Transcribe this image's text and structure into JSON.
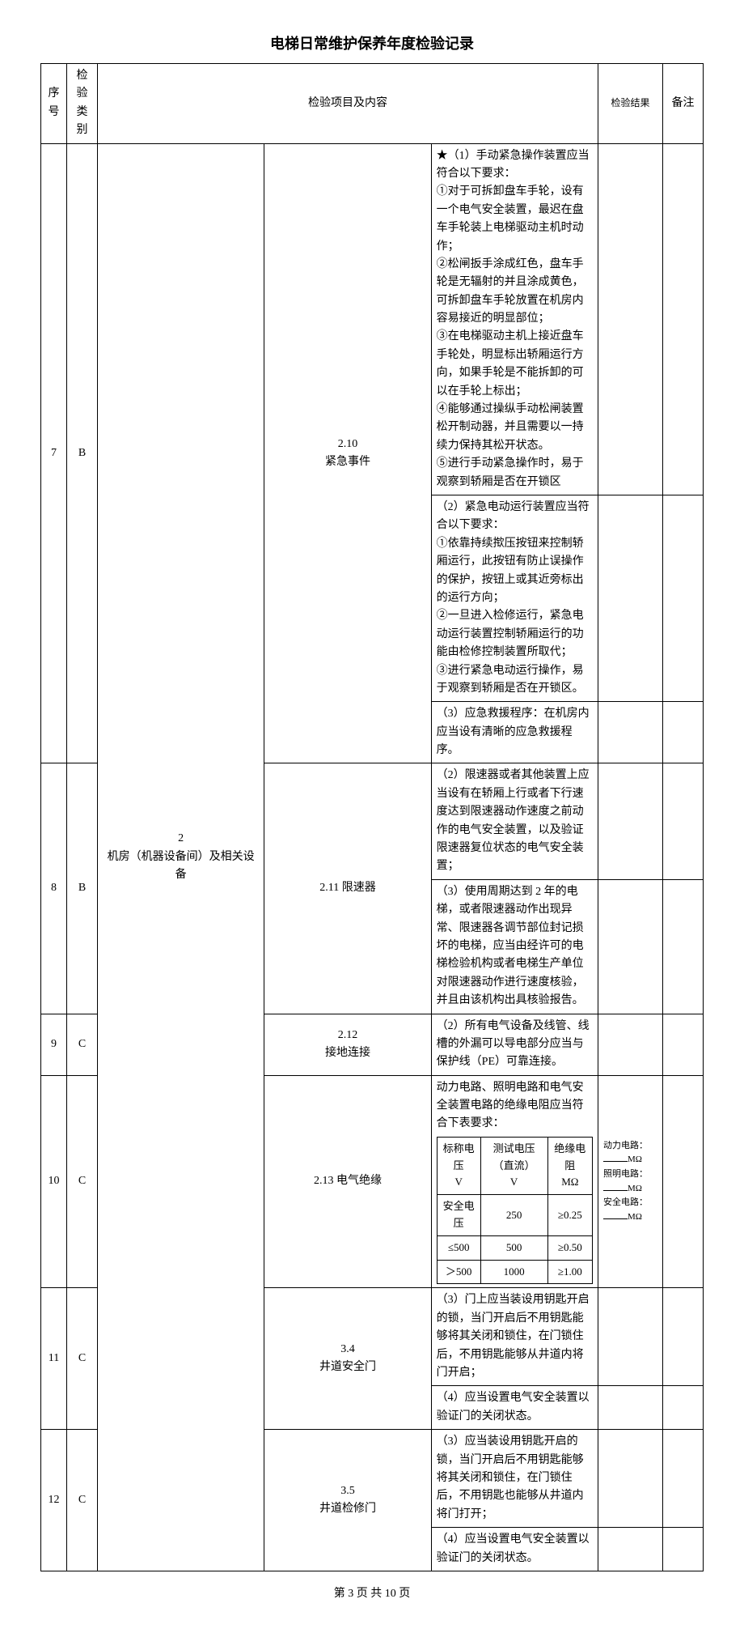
{
  "title": "电梯日常维护保养年度检验记录",
  "headers": {
    "seq": "序号",
    "category": "检验类别",
    "project": "检验项目及内容",
    "result": "检验结果",
    "note": "备注"
  },
  "section_group": "2\n机房（机器设备间）及相关设备",
  "rows": [
    {
      "seq": "7",
      "cat": "B",
      "subsection": "2.10\n紧急事件",
      "contents": [
        "★（1）手动紧急操作装置应当符合以下要求：\n①对于可拆卸盘车手轮，设有一个电气安全装置，最迟在盘车手轮装上电梯驱动主机时动作；\n②松闸扳手涂成红色，盘车手轮是无辐射的并且涂成黄色，可拆卸盘车手轮放置在机房内容易接近的明显部位；\n③在电梯驱动主机上接近盘车手轮处，明显标出轿厢运行方向，如果手轮是不能拆卸的可以在手轮上标出；\n④能够通过操纵手动松闸装置松开制动器，并且需要以一持续力保持其松开状态。\n⑤进行手动紧急操作时，易于观察到轿厢是否在开锁区",
        "（2）紧急电动运行装置应当符合以下要求：\n①依靠持续揿压按钮来控制轿厢运行，此按钮有防止误操作的保护，按钮上或其近旁标出的运行方向；\n②一旦进入检修运行，紧急电动运行装置控制轿厢运行的功能由检修控制装置所取代；\n③进行紧急电动运行操作，易于观察到轿厢是否在开锁区。",
        "（3）应急救援程序：在机房内应当设有清晰的应急救援程序。"
      ]
    },
    {
      "seq": "8",
      "cat": "B",
      "subsection": "2.11 限速器",
      "contents": [
        "（2）限速器或者其他装置上应当设有在轿厢上行或者下行速度达到限速器动作速度之前动作的电气安全装置，以及验证限速器复位状态的电气安全装置；",
        "（3）使用周期达到 2 年的电梯，或者限速器动作出现异常、限速器各调节部位封记损坏的电梯，应当由经许可的电梯检验机构或者电梯生产单位对限速器动作进行速度核验，并且由该机构出具核验报告。"
      ]
    },
    {
      "seq": "9",
      "cat": "C",
      "subsection": "2.12\n接地连接",
      "contents": [
        "（2）所有电气设备及线管、线槽的外漏可以导电部分应当与保护线（PE）可靠连接。"
      ]
    },
    {
      "seq": "10",
      "cat": "C",
      "subsection": "2.13 电气绝缘",
      "content_intro": "动力电路、照明电路和电气安全装置电路的绝缘电阻应当符合下表要求：",
      "inner_table": {
        "headers": [
          "标称电压\nV",
          "测试电压（直流）\nV",
          "绝缘电阻\nMΩ"
        ],
        "rows": [
          [
            "安全电压",
            "250",
            "≥0.25"
          ],
          [
            "≤500",
            "500",
            "≥0.50"
          ],
          [
            "＞500",
            "1000",
            "≥1.00"
          ]
        ]
      },
      "result_text": {
        "l1": "动力电路：",
        "u1": "MΩ",
        "l2": "照明电路：",
        "u2": "MΩ",
        "l3": "安全电路：",
        "u3": "MΩ"
      }
    },
    {
      "seq": "11",
      "cat": "C",
      "subsection": "3.4\n井道安全门",
      "contents": [
        "（3）门上应当装设用钥匙开启的锁，当门开启后不用钥匙能够将其关闭和锁住，在门锁住后，不用钥匙能够从井道内将门开启；",
        "（4）应当设置电气安全装置以验证门的关闭状态。"
      ]
    },
    {
      "seq": "12",
      "cat": "C",
      "subsection": "3.5\n井道检修门",
      "contents": [
        "（3）应当装设用钥匙开启的锁，当门开启后不用钥匙能够将其关闭和锁住，在门锁住后，不用钥匙也能够从井道内将门打开；",
        "（4）应当设置电气安全装置以验证门的关闭状态。"
      ]
    }
  ],
  "footer": "第 3 页  共 10 页"
}
